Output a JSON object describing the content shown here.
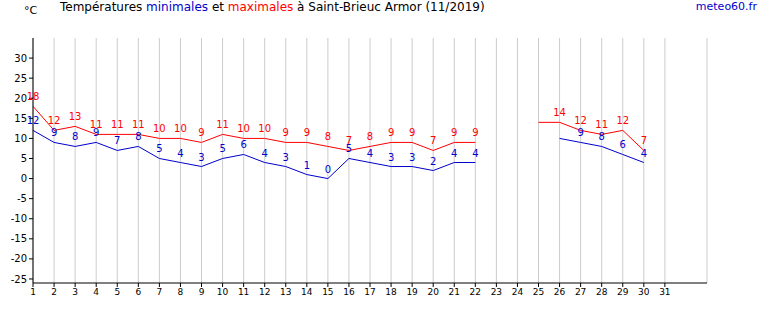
{
  "chart_data": {
    "type": "line",
    "title": "Températures minimales et maximales à Saint-Brieuc Armor (11/2019)",
    "source": "meteo60.fr",
    "y_label": "°C",
    "x": [
      1,
      2,
      3,
      4,
      5,
      6,
      7,
      8,
      9,
      10,
      11,
      12,
      13,
      14,
      15,
      16,
      17,
      18,
      19,
      20,
      21,
      22,
      23,
      24,
      25,
      26,
      27,
      28,
      29,
      30,
      31
    ],
    "xlim": [
      1,
      33
    ],
    "xticks": [
      1,
      2,
      3,
      4,
      5,
      6,
      7,
      8,
      9,
      10,
      11,
      12,
      13,
      14,
      15,
      16,
      17,
      18,
      19,
      20,
      21,
      22,
      23,
      24,
      25,
      26,
      27,
      28,
      29,
      30,
      31
    ],
    "ylim": [
      -26,
      35
    ],
    "yticks": [
      -25,
      -20,
      -15,
      -10,
      -5,
      0,
      5,
      10,
      15,
      20,
      25,
      30
    ],
    "grid": true,
    "data_labels": true,
    "series": [
      {
        "name": "minimales",
        "color": "#0000cc",
        "values": [
          12,
          9,
          8,
          9,
          7,
          8,
          5,
          4,
          3,
          5,
          6,
          4,
          3,
          1,
          0,
          5,
          4,
          3,
          3,
          2,
          4,
          4,
          null,
          null,
          null,
          10,
          9,
          8,
          6,
          4,
          null
        ],
        "value_labels": [
          "12",
          "9",
          "8",
          "9",
          "7",
          "8",
          "5",
          "4",
          "3",
          "5",
          "6",
          "4",
          "3",
          "1",
          "0",
          "5",
          "4",
          "3",
          "3",
          "2",
          "4",
          "4",
          null,
          null,
          null,
          null,
          "9",
          "8",
          "6",
          "4",
          null
        ]
      },
      {
        "name": "maximales",
        "color": "#ff0000",
        "values": [
          18,
          12,
          13,
          11,
          11,
          11,
          10,
          10,
          9,
          11,
          10,
          10,
          9,
          9,
          8,
          7,
          8,
          9,
          9,
          7,
          9,
          9,
          null,
          null,
          14,
          14,
          12,
          11,
          12,
          7,
          null
        ],
        "value_labels": [
          "18",
          "12",
          "13",
          "11",
          "11",
          "11",
          "10",
          "10",
          "9",
          "11",
          "10",
          "10",
          "9",
          "9",
          "8",
          "7",
          "8",
          "9",
          "9",
          "7",
          "9",
          "9",
          null,
          null,
          null,
          "14",
          "12",
          "11",
          "12",
          "7",
          null
        ]
      }
    ]
  }
}
